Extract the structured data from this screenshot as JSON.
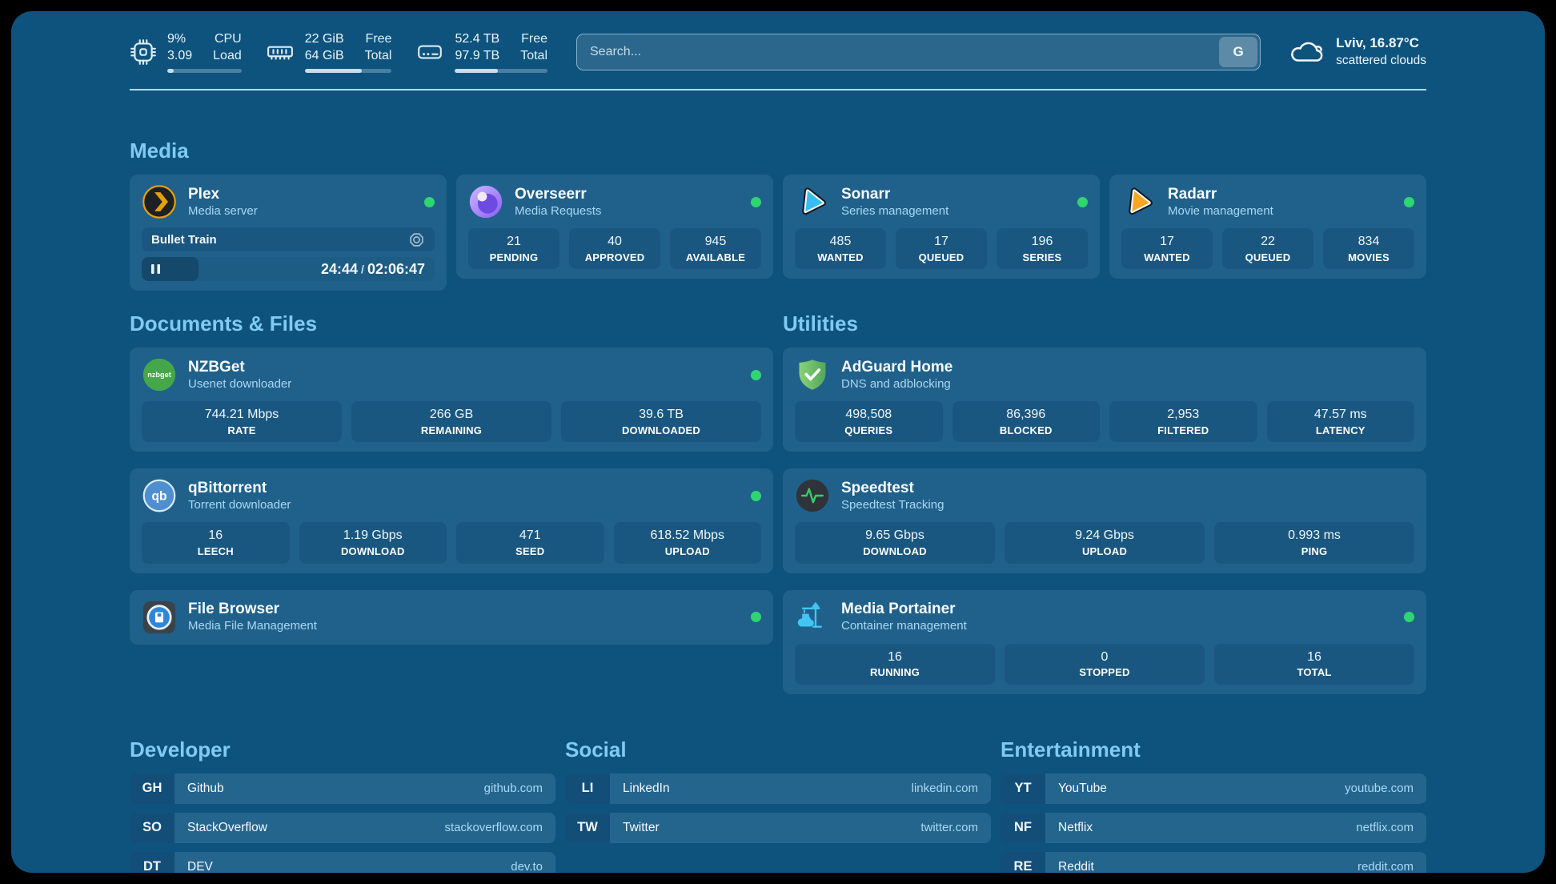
{
  "theme": {
    "page_background": "#0E537D",
    "card_background": "#20618B",
    "heading_color": "#7FCBF3",
    "status_online_color": "#2FD573"
  },
  "topbar": {
    "system_stats": [
      {
        "icon": "cpu-icon",
        "values": [
          "9%",
          "3.09"
        ],
        "labels": [
          "CPU",
          "Load"
        ],
        "progress_pct": 9
      },
      {
        "icon": "memory-icon",
        "values": [
          "22 GiB",
          "64 GiB"
        ],
        "labels": [
          "Free",
          "Total"
        ],
        "progress_pct": 66
      },
      {
        "icon": "disk-icon",
        "values": [
          "52.4 TB",
          "97.9 TB"
        ],
        "labels": [
          "Free",
          "Total"
        ],
        "progress_pct": 46
      }
    ],
    "search": {
      "placeholder": "Search...",
      "button_label": "G"
    },
    "weather": {
      "icon": "cloud-icon",
      "location_temperature": "Lviv, 16.87°C",
      "condition": "scattered clouds"
    }
  },
  "sections": {
    "media": {
      "title": "Media",
      "services": [
        {
          "name": "Plex",
          "subtitle": "Media server",
          "icon": "plex-icon",
          "status": "online",
          "now_playing": {
            "title": "Bullet Train",
            "elapsed": "24:44",
            "separator": "/",
            "duration": "02:06:47",
            "progress_pct": 19.5
          }
        },
        {
          "name": "Overseerr",
          "subtitle": "Media Requests",
          "icon": "overseerr-icon",
          "status": "online",
          "stats": [
            {
              "value": "21",
              "label": "PENDING"
            },
            {
              "value": "40",
              "label": "APPROVED"
            },
            {
              "value": "945",
              "label": "AVAILABLE"
            }
          ]
        },
        {
          "name": "Sonarr",
          "subtitle": "Series management",
          "icon": "sonarr-icon",
          "status": "online",
          "stats": [
            {
              "value": "485",
              "label": "WANTED"
            },
            {
              "value": "17",
              "label": "QUEUED"
            },
            {
              "value": "196",
              "label": "SERIES"
            }
          ]
        },
        {
          "name": "Radarr",
          "subtitle": "Movie management",
          "icon": "radarr-icon",
          "status": "online",
          "stats": [
            {
              "value": "17",
              "label": "WANTED"
            },
            {
              "value": "22",
              "label": "QUEUED"
            },
            {
              "value": "834",
              "label": "MOVIES"
            }
          ]
        }
      ]
    },
    "documents": {
      "title": "Documents & Files",
      "services": [
        {
          "name": "NZBGet",
          "subtitle": "Usenet downloader",
          "icon": "nzbget-icon",
          "status": "online",
          "stats": [
            {
              "value": "744.21 Mbps",
              "label": "RATE"
            },
            {
              "value": "266 GB",
              "label": "REMAINING"
            },
            {
              "value": "39.6 TB",
              "label": "DOWNLOADED"
            }
          ]
        },
        {
          "name": "qBittorrent",
          "subtitle": "Torrent downloader",
          "icon": "qbittorrent-icon",
          "status": "online",
          "stats": [
            {
              "value": "16",
              "label": "LEECH"
            },
            {
              "value": "1.19 Gbps",
              "label": "DOWNLOAD"
            },
            {
              "value": "471",
              "label": "SEED"
            },
            {
              "value": "618.52 Mbps",
              "label": "UPLOAD"
            }
          ]
        },
        {
          "name": "File Browser",
          "subtitle": "Media File Management",
          "icon": "filebrowser-icon",
          "status": "online"
        }
      ]
    },
    "utilities": {
      "title": "Utilities",
      "services": [
        {
          "name": "AdGuard Home",
          "subtitle": "DNS and adblocking",
          "icon": "adguard-icon",
          "stats": [
            {
              "value": "498,508",
              "label": "QUERIES"
            },
            {
              "value": "86,396",
              "label": "BLOCKED"
            },
            {
              "value": "2,953",
              "label": "FILTERED"
            },
            {
              "value": "47.57 ms",
              "label": "LATENCY"
            }
          ]
        },
        {
          "name": "Speedtest",
          "subtitle": "Speedtest Tracking",
          "icon": "speedtest-icon",
          "stats": [
            {
              "value": "9.65 Gbps",
              "label": "DOWNLOAD"
            },
            {
              "value": "9.24 Gbps",
              "label": "UPLOAD"
            },
            {
              "value": "0.993 ms",
              "label": "PING"
            }
          ]
        },
        {
          "name": "Media Portainer",
          "subtitle": "Container management",
          "icon": "portainer-icon",
          "status": "online",
          "stats": [
            {
              "value": "16",
              "label": "RUNNING"
            },
            {
              "value": "0",
              "label": "STOPPED"
            },
            {
              "value": "16",
              "label": "TOTAL"
            }
          ]
        }
      ]
    }
  },
  "bookmarks": [
    {
      "title": "Developer",
      "links": [
        {
          "abbr": "GH",
          "name": "Github",
          "url": "github.com"
        },
        {
          "abbr": "SO",
          "name": "StackOverflow",
          "url": "stackoverflow.com"
        },
        {
          "abbr": "DT",
          "name": "DEV",
          "url": "dev.to"
        }
      ]
    },
    {
      "title": "Social",
      "links": [
        {
          "abbr": "LI",
          "name": "LinkedIn",
          "url": "linkedin.com"
        },
        {
          "abbr": "TW",
          "name": "Twitter",
          "url": "twitter.com"
        }
      ]
    },
    {
      "title": "Entertainment",
      "links": [
        {
          "abbr": "YT",
          "name": "YouTube",
          "url": "youtube.com"
        },
        {
          "abbr": "NF",
          "name": "Netflix",
          "url": "netflix.com"
        },
        {
          "abbr": "RE",
          "name": "Reddit",
          "url": "reddit.com"
        }
      ]
    }
  ]
}
